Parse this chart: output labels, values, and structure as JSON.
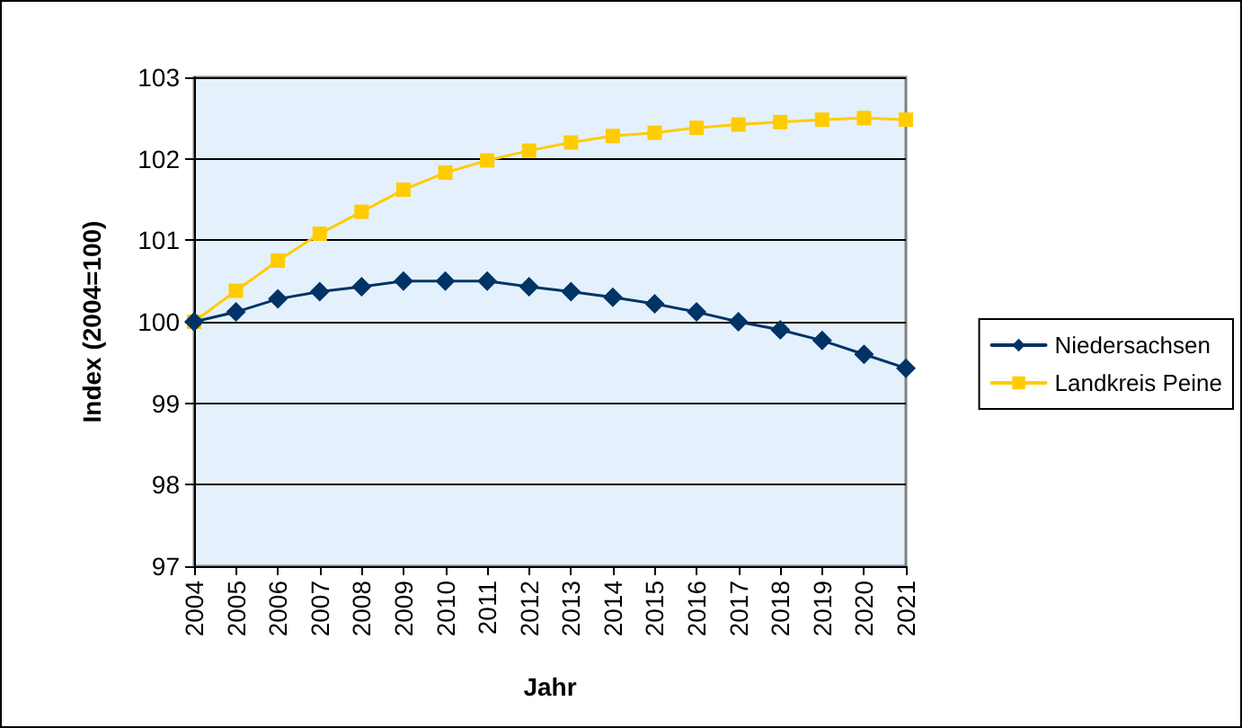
{
  "chart_data": {
    "type": "line",
    "xlabel": "Jahr",
    "ylabel": "Index (2004=100)",
    "categories": [
      "2004",
      "2005",
      "2006",
      "2007",
      "2008",
      "2009",
      "2010",
      "2011",
      "2012",
      "2013",
      "2014",
      "2015",
      "2016",
      "2017",
      "2018",
      "2019",
      "2020",
      "2021"
    ],
    "series": [
      {
        "name": "Niedersachsen",
        "color": "#003366",
        "marker": "diamond",
        "values": [
          100,
          100.12,
          100.28,
          100.37,
          100.43,
          100.5,
          100.5,
          100.5,
          100.43,
          100.37,
          100.3,
          100.22,
          100.12,
          100.0,
          99.9,
          99.77,
          99.6,
          99.43
        ]
      },
      {
        "name": "Landkreis Peine",
        "color": "#ffcc00",
        "marker": "square",
        "values": [
          100,
          100.38,
          100.75,
          101.08,
          101.35,
          101.62,
          101.83,
          101.98,
          102.1,
          102.2,
          102.28,
          102.32,
          102.38,
          102.42,
          102.45,
          102.48,
          102.5,
          102.48
        ]
      }
    ],
    "ylim": [
      97,
      103
    ],
    "yticks": [
      97,
      98,
      99,
      100,
      101,
      102,
      103
    ],
    "grid": "y",
    "legend": "right",
    "line_style": "solid"
  }
}
